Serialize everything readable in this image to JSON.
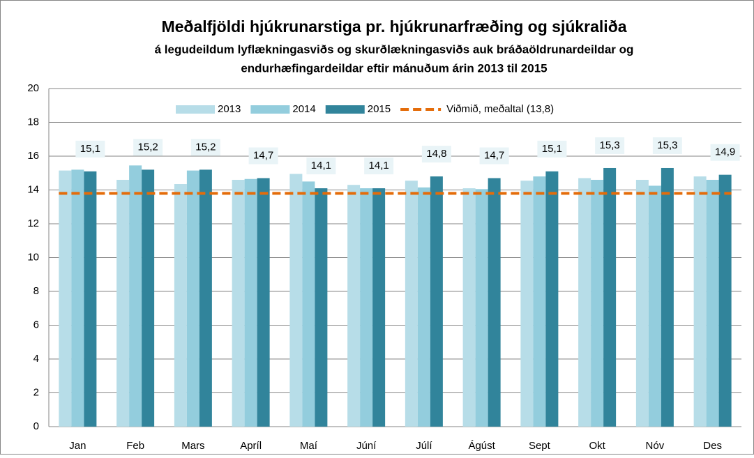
{
  "chart_data": {
    "type": "bar",
    "title": "Meðalfjöldi hjúkrunarstiga pr. hjúkrunarfræðing og sjúkraliða",
    "subtitle": [
      "á legudeildum lyflækningasviðs og skurðlækningasviðs auk bráðaöldrunardeildar og",
      "endurhæfingardeildar eftir mánuðum árin 2013  til 2015"
    ],
    "categories": [
      "Jan",
      "Feb",
      "Mars",
      "Apríl",
      "Maí",
      "Júní",
      "Júlí",
      "Ágúst",
      "Sept",
      "Okt",
      "Nóv",
      "Des"
    ],
    "series": [
      {
        "name": "2013",
        "color": "#b7dde8",
        "values": [
          15.15,
          14.6,
          14.35,
          14.6,
          14.95,
          14.3,
          14.55,
          14.1,
          14.55,
          14.7,
          14.6,
          14.8
        ]
      },
      {
        "name": "2014",
        "color": "#93cddd",
        "values": [
          15.2,
          15.45,
          15.15,
          14.65,
          14.5,
          14.1,
          14.15,
          14.05,
          14.8,
          14.6,
          14.25,
          14.6
        ]
      },
      {
        "name": "2015",
        "color": "#31849b",
        "values": [
          15.1,
          15.2,
          15.2,
          14.7,
          14.1,
          14.1,
          14.8,
          14.7,
          15.1,
          15.3,
          15.3,
          14.9
        ],
        "value_labels": [
          "15,1",
          "15,2",
          "15,2",
          "14,7",
          "14,1",
          "14,1",
          "14,8",
          "14,7",
          "15,1",
          "15,3",
          "15,3",
          "14,9"
        ]
      },
      {
        "name": "Viðmið, meðaltal (13,8)",
        "color": "#e46c0a",
        "type": "line",
        "dashed": true,
        "values": [
          13.8,
          13.8,
          13.8,
          13.8,
          13.8,
          13.8,
          13.8,
          13.8,
          13.8,
          13.8,
          13.8,
          13.8
        ]
      }
    ],
    "ylim": [
      0,
      20
    ],
    "yticks": [
      0,
      2,
      4,
      6,
      8,
      10,
      12,
      14,
      16,
      18,
      20
    ],
    "grid": true,
    "legend": "top"
  }
}
